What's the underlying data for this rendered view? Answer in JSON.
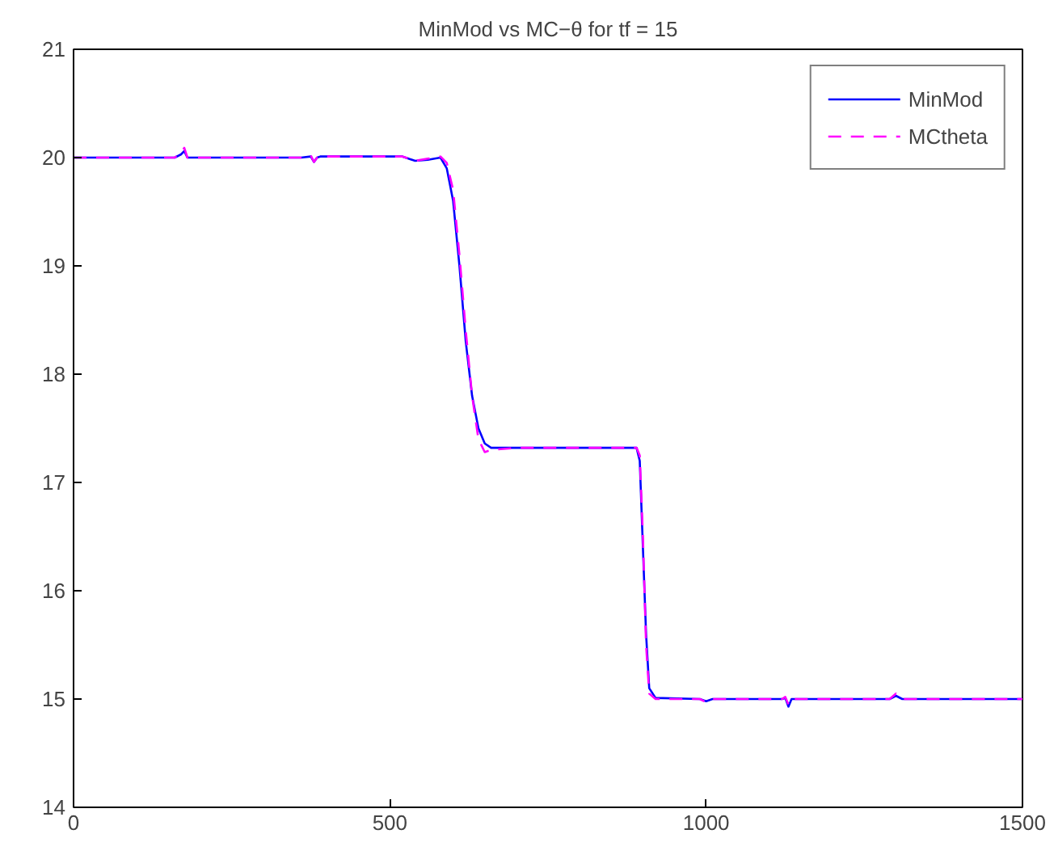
{
  "chart_data": {
    "type": "line",
    "title": "MinMod vs MC−θ for tf = 15",
    "xlim": [
      0,
      1500
    ],
    "xticks": [
      0,
      500,
      1000,
      1500
    ],
    "ylim": [
      14,
      21
    ],
    "yticks": [
      14,
      15,
      16,
      17,
      18,
      19,
      20,
      21
    ],
    "grid": false,
    "legend": "top right",
    "line_style": "solid",
    "marker": "none",
    "series": [
      {
        "name": "MinMod",
        "color": "#0000ff",
        "x": [
          0,
          160,
          170,
          175,
          180,
          190,
          360,
          375,
          380,
          385,
          390,
          400,
          520,
          540,
          560,
          580,
          590,
          600,
          610,
          620,
          630,
          640,
          650,
          660,
          700,
          890,
          895,
          900,
          905,
          910,
          920,
          990,
          1000,
          1010,
          1120,
          1125,
          1130,
          1135,
          1145,
          1290,
          1300,
          1310,
          1500
        ],
        "values": [
          20.0,
          20.0,
          20.03,
          20.06,
          20.0,
          20.0,
          20.0,
          20.01,
          19.96,
          20.0,
          20.01,
          20.01,
          20.01,
          19.97,
          19.98,
          20.0,
          19.9,
          19.6,
          19.0,
          18.3,
          17.8,
          17.5,
          17.36,
          17.32,
          17.32,
          17.32,
          17.2,
          16.4,
          15.6,
          15.1,
          15.01,
          15.0,
          14.98,
          15.0,
          15.0,
          15.01,
          14.93,
          15.0,
          15.0,
          15.0,
          15.03,
          15.0,
          15.0
        ]
      },
      {
        "name": "MCtheta",
        "color": "#ff00ff",
        "line_style": "dashed",
        "x": [
          0,
          160,
          170,
          175,
          180,
          190,
          360,
          375,
          380,
          385,
          390,
          400,
          520,
          540,
          560,
          580,
          590,
          600,
          610,
          620,
          630,
          640,
          650,
          660,
          700,
          890,
          895,
          900,
          905,
          910,
          920,
          990,
          1000,
          1010,
          1120,
          1125,
          1130,
          1135,
          1145,
          1290,
          1300,
          1310,
          1500
        ],
        "values": [
          20.0,
          20.0,
          20.05,
          20.09,
          20.0,
          20.0,
          20.0,
          20.02,
          19.96,
          20.0,
          20.01,
          20.01,
          20.01,
          19.97,
          19.99,
          20.01,
          19.95,
          19.7,
          19.1,
          18.4,
          17.8,
          17.4,
          17.28,
          17.3,
          17.32,
          17.32,
          17.25,
          16.5,
          15.5,
          15.05,
          15.0,
          15.0,
          14.97,
          15.0,
          15.0,
          15.02,
          14.95,
          15.0,
          15.0,
          15.0,
          15.05,
          15.0,
          15.0
        ]
      }
    ]
  }
}
